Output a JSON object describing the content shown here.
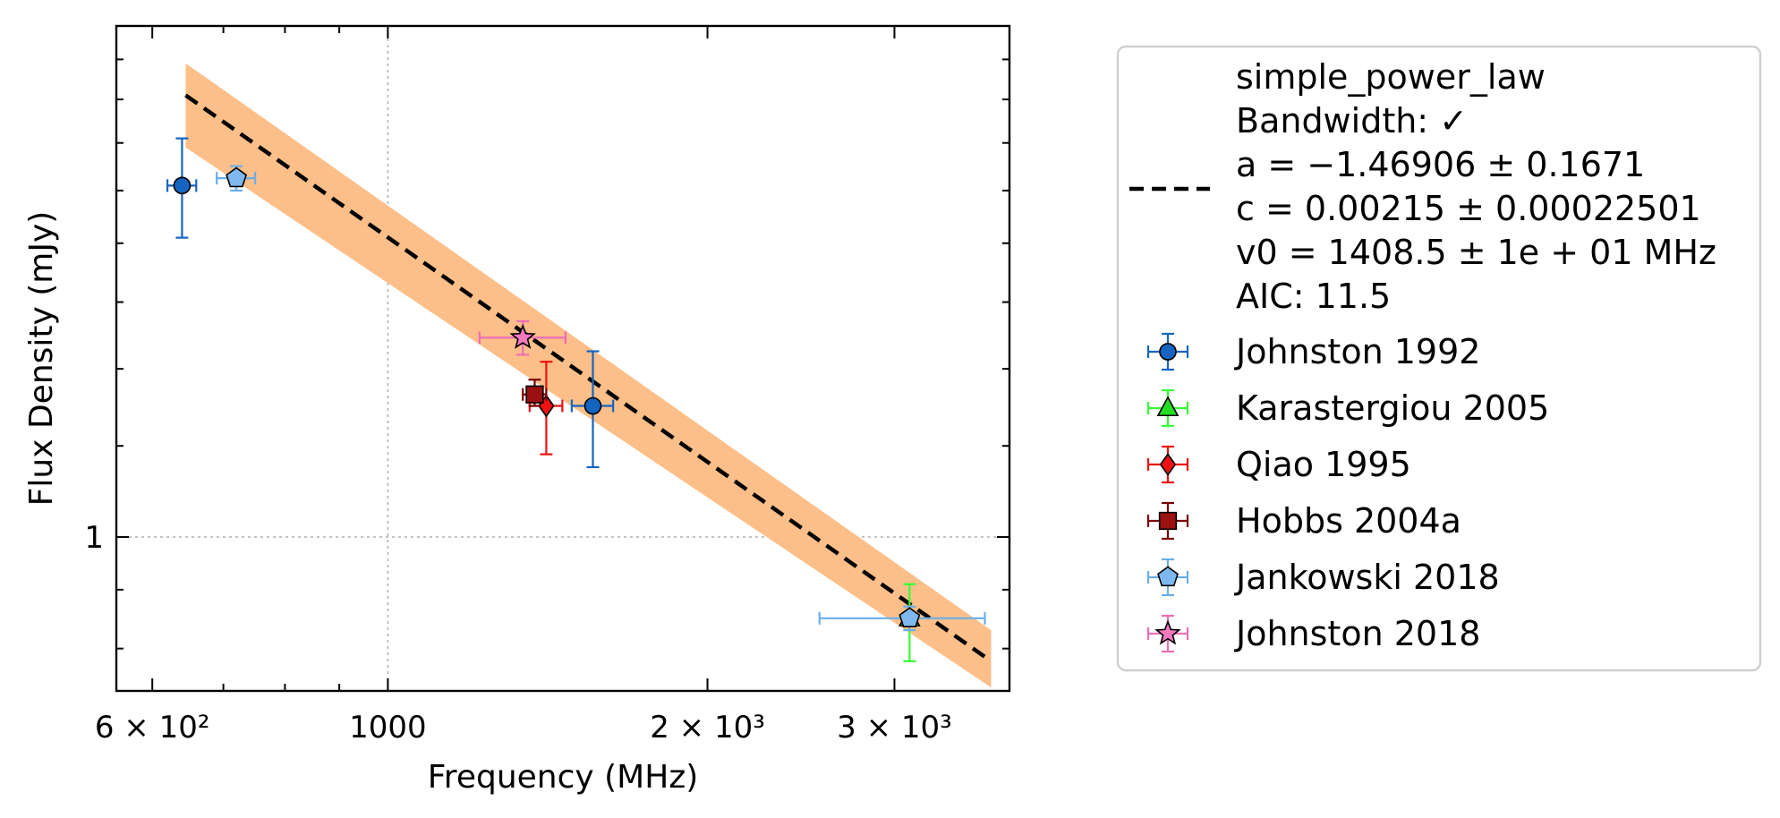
{
  "chart_data": {
    "type": "scatter",
    "title": "",
    "xlabel": "Frequency (MHz)",
    "ylabel": "Flux Density (mJy)",
    "xscale": "log",
    "yscale": "log",
    "xlim": [
      555,
      3850
    ],
    "ylim": [
      0.735,
      2.78
    ],
    "x_ticks": [
      {
        "value": 600,
        "label": "6 × 10²"
      },
      {
        "value": 1000,
        "label": "1000"
      },
      {
        "value": 2000,
        "label": "2 × 10³"
      },
      {
        "value": 3000,
        "label": "3 × 10³"
      }
    ],
    "y_ticks": [
      {
        "value": 1,
        "label": "1"
      }
    ],
    "grid": true,
    "legend_position": "outside-right",
    "fit": {
      "name": "simple_power_law",
      "legend_lines": [
        "simple_power_law",
        "Bandwidth: ✓",
        "a = −1.46906 ± 0.1671",
        "c = 0.00215 ± 0.00022501",
        "v0 = 1408.5 ± 1e + 01 MHz",
        "AIC: 11.5"
      ],
      "a": -1.46906,
      "a_err": 0.1671,
      "c": 0.00215,
      "c_err": 0.00022501,
      "v0": 1408.5,
      "x_range": [
        645,
        3700
      ],
      "y_at_x0": 2.42,
      "y_at_x1": 0.78,
      "band_low_at_x0": 2.18,
      "band_low_at_x1": 0.74,
      "band_high_at_x0": 2.58,
      "band_high_at_x1": 0.83,
      "line_color": "#000000",
      "band_color": "#FDBF89"
    },
    "series": [
      {
        "name": "Johnston 1992",
        "marker": "circle",
        "color": "#1565C0",
        "ecolor": "#1565C0",
        "points": [
          {
            "x": 640,
            "y": 2.02,
            "xerr": [
              20,
              20
            ],
            "yerr_low": 1.82,
            "yerr_high": 2.22
          },
          {
            "x": 1560,
            "y": 1.3,
            "xerr": [
              70,
              70
            ],
            "yerr_low": 1.15,
            "yerr_high": 1.45
          }
        ]
      },
      {
        "name": "Karastergiou 2005",
        "marker": "triangle",
        "color": "#22DD22",
        "ecolor": "#33FF33",
        "points": [
          {
            "x": 3100,
            "y": 0.85,
            "xerr": [
              0,
              0
            ],
            "yerr_low": 0.78,
            "yerr_high": 0.91
          }
        ]
      },
      {
        "name": "Qiao 1995",
        "marker": "diamond",
        "color": "#EE1111",
        "ecolor": "#EE1111",
        "points": [
          {
            "x": 1410,
            "y": 1.3,
            "xerr": [
              50,
              50
            ],
            "yerr_low": 1.18,
            "yerr_high": 1.42
          }
        ]
      },
      {
        "name": "Hobbs 2004a",
        "marker": "square",
        "color": "#9B1010",
        "ecolor": "#7A0000",
        "points": [
          {
            "x": 1375,
            "y": 1.33,
            "xerr": [
              35,
              35
            ],
            "yerr_low": 1.3,
            "yerr_high": 1.37
          }
        ]
      },
      {
        "name": "Jankowski 2018",
        "marker": "pentagon",
        "color": "#7FB8EE",
        "ecolor": "#6AAFE8",
        "points": [
          {
            "x": 720,
            "y": 2.05,
            "xerr": [
              30,
              30
            ],
            "yerr_low": 2.0,
            "yerr_high": 2.1
          },
          {
            "x": 3100,
            "y": 0.85,
            "xerr": [
              550,
              550
            ],
            "yerr_low": 0.83,
            "yerr_high": 0.87
          }
        ]
      },
      {
        "name": "Johnston 2018",
        "marker": "star",
        "color": "#F47AC0",
        "ecolor": "#F06CB5",
        "points": [
          {
            "x": 1340,
            "y": 1.49,
            "xerr": [
              120,
              130
            ],
            "yerr_low": 1.44,
            "yerr_high": 1.54
          }
        ]
      }
    ]
  }
}
